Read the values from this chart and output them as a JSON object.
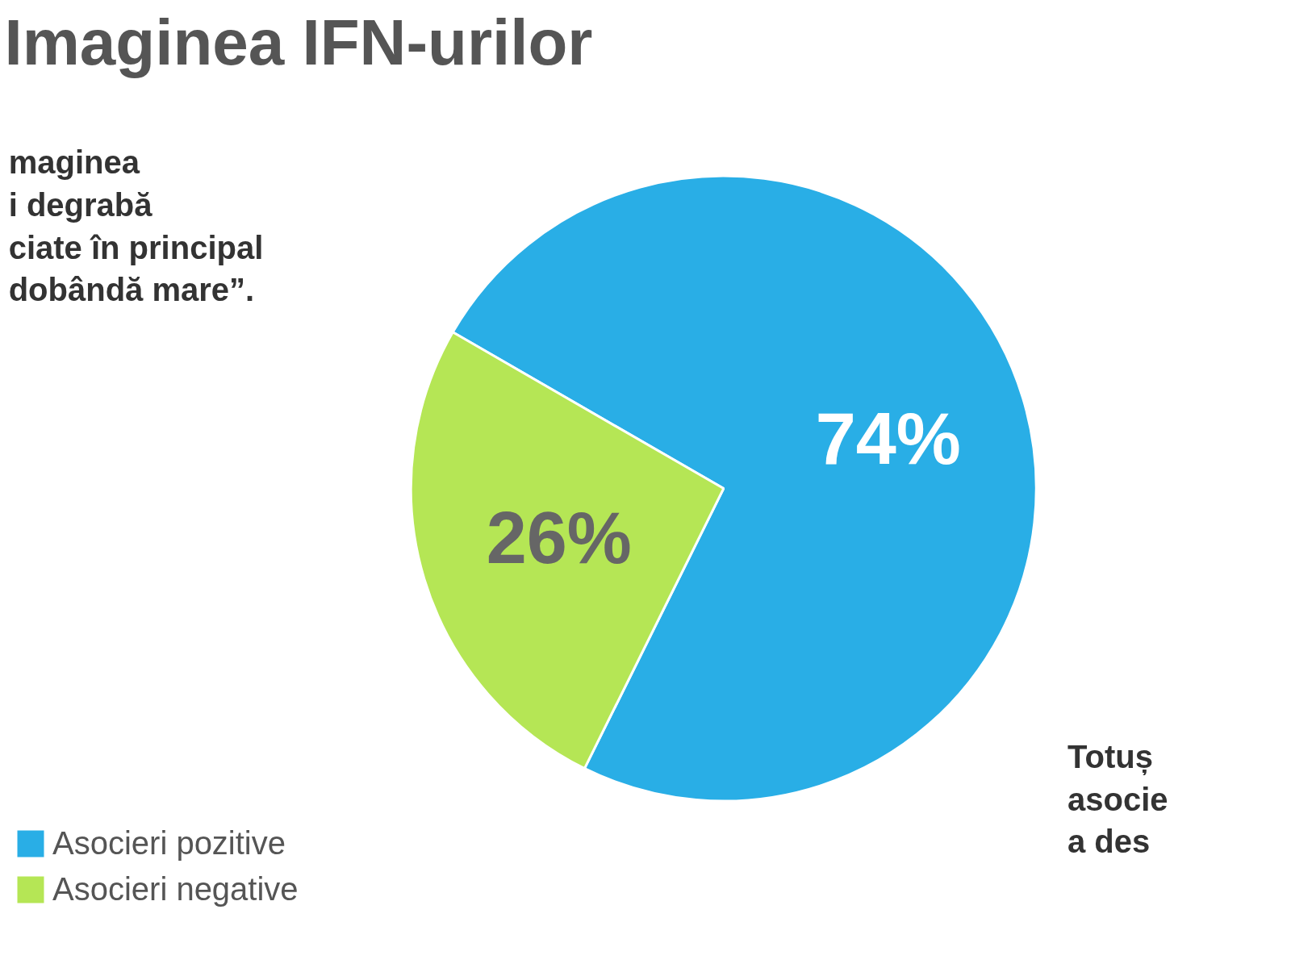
{
  "chart_data": {
    "type": "pie",
    "title": "Imaginea IFN-urilor",
    "categories": [
      "Asocieri pozitive",
      "Asocieri negative"
    ],
    "values": [
      74,
      26
    ],
    "colors": [
      "#29aee6",
      "#b5e655"
    ],
    "value_labels": [
      "74%",
      "26%"
    ],
    "legend": "bottom left",
    "annotations": [
      "maginea\ni degrabă\nciate în principal\ndobândă mare”.",
      "Totuș\nasocie\na des"
    ]
  }
}
